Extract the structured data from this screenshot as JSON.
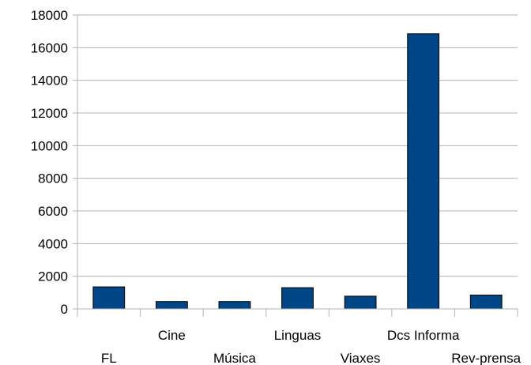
{
  "chart_data": {
    "type": "bar",
    "categories": [
      "FL",
      "Cine",
      "Música",
      "Linguas",
      "Viaxes",
      "Dcs Informa",
      "Rev-prensa"
    ],
    "values": [
      1350,
      450,
      450,
      1300,
      780,
      16850,
      850
    ],
    "ylim": [
      0,
      18000
    ],
    "yticks": [
      0,
      2000,
      4000,
      6000,
      8000,
      10000,
      12000,
      14000,
      16000,
      18000
    ],
    "grid": true,
    "legend": "none",
    "colors": {
      "bar": "#004586",
      "bar_stroke": "#000000",
      "grid": "#b3b3b3",
      "axis": "#b3b3b3"
    }
  }
}
